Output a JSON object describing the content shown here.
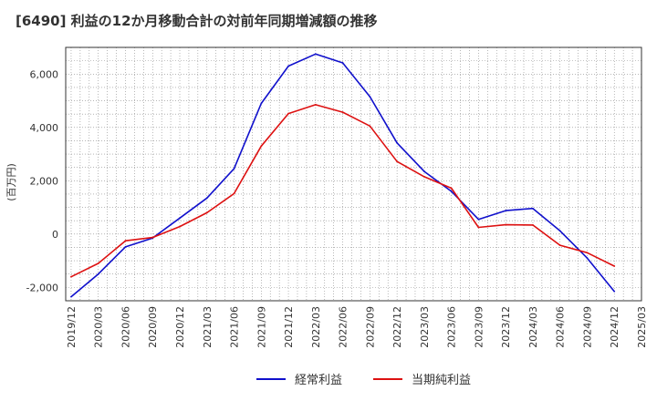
{
  "chart_data": {
    "type": "line",
    "title": "[6490]  利益の12か月移動合計の対前年同期増減額の推移",
    "ylabel": "(百万円)",
    "xlabel": "",
    "x_ticks": [
      "2019/12",
      "2020/03",
      "2020/06",
      "2020/09",
      "2020/12",
      "2021/03",
      "2021/06",
      "2021/09",
      "2021/12",
      "2022/03",
      "2022/06",
      "2022/09",
      "2022/12",
      "2023/03",
      "2023/06",
      "2023/09",
      "2023/12",
      "2024/03",
      "2024/06",
      "2024/09",
      "2024/12",
      "2025/03"
    ],
    "y_ticks": [
      "-2,000",
      "0",
      "2,000",
      "4,000",
      "6,000"
    ],
    "ylim": [
      -2500,
      7000
    ],
    "grid": true,
    "legend_position": "bottom",
    "x": [
      "2019/12",
      "2020/03",
      "2020/06",
      "2020/09",
      "2020/12",
      "2021/03",
      "2021/06",
      "2021/09",
      "2021/12",
      "2022/03",
      "2022/06",
      "2022/09",
      "2022/12",
      "2023/03",
      "2023/06",
      "2023/09",
      "2023/12",
      "2024/03",
      "2024/06",
      "2024/09",
      "2024/12"
    ],
    "series": [
      {
        "name": "経常利益",
        "color": "#1010cc",
        "values": [
          -2350,
          -1500,
          -480,
          -150,
          600,
          1350,
          2450,
          4900,
          6300,
          6750,
          6420,
          5150,
          3420,
          2350,
          1600,
          550,
          880,
          960,
          120,
          -900,
          -2150
        ]
      },
      {
        "name": "当期純利益",
        "color": "#dd1111",
        "values": [
          -1600,
          -1100,
          -250,
          -130,
          280,
          800,
          1520,
          3300,
          4520,
          4850,
          4570,
          4050,
          2720,
          2150,
          1720,
          250,
          350,
          340,
          -420,
          -700,
          -1200
        ]
      }
    ]
  }
}
